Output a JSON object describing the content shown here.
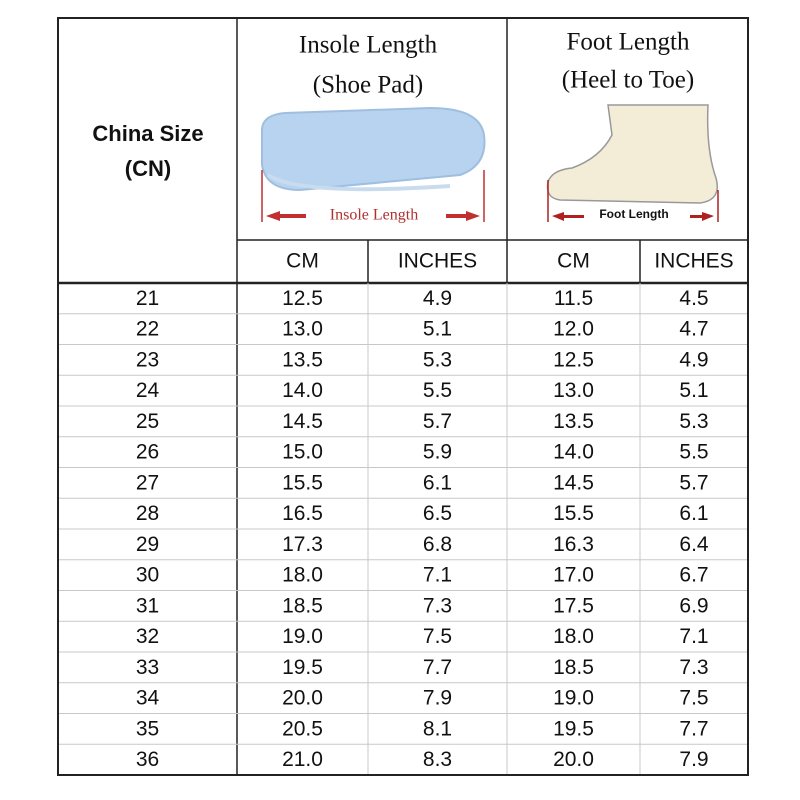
{
  "table": {
    "header": {
      "size_label": [
        "China Size",
        "(CN)"
      ],
      "insole": {
        "title": [
          "Insole Length",
          "(Shoe Pad)"
        ],
        "image_label": "Insole Length"
      },
      "foot": {
        "title": [
          "Foot Length",
          "(Heel to Toe)"
        ],
        "image_label": "Foot Length"
      },
      "subcolumns": [
        "CM",
        "INCHES",
        "CM",
        "INCHES"
      ]
    },
    "rows": [
      [
        "21",
        "12.5",
        "4.9",
        "11.5",
        "4.5"
      ],
      [
        "22",
        "13.0",
        "5.1",
        "12.0",
        "4.7"
      ],
      [
        "23",
        "13.5",
        "5.3",
        "12.5",
        "4.9"
      ],
      [
        "24",
        "14.0",
        "5.5",
        "13.0",
        "5.1"
      ],
      [
        "25",
        "14.5",
        "5.7",
        "13.5",
        "5.3"
      ],
      [
        "26",
        "15.0",
        "5.9",
        "14.0",
        "5.5"
      ],
      [
        "27",
        "15.5",
        "6.1",
        "14.5",
        "5.7"
      ],
      [
        "28",
        "16.5",
        "6.5",
        "15.5",
        "6.1"
      ],
      [
        "29",
        "17.3",
        "6.8",
        "16.3",
        "6.4"
      ],
      [
        "30",
        "18.0",
        "7.1",
        "17.0",
        "6.7"
      ],
      [
        "31",
        "18.5",
        "7.3",
        "17.5",
        "6.9"
      ],
      [
        "32",
        "19.0",
        "7.5",
        "18.0",
        "7.1"
      ],
      [
        "33",
        "19.5",
        "7.7",
        "18.5",
        "7.3"
      ],
      [
        "34",
        "20.0",
        "7.9",
        "19.0",
        "7.5"
      ],
      [
        "35",
        "20.5",
        "8.1",
        "19.5",
        "7.7"
      ],
      [
        "36",
        "21.0",
        "8.3",
        "20.0",
        "7.9"
      ]
    ]
  }
}
